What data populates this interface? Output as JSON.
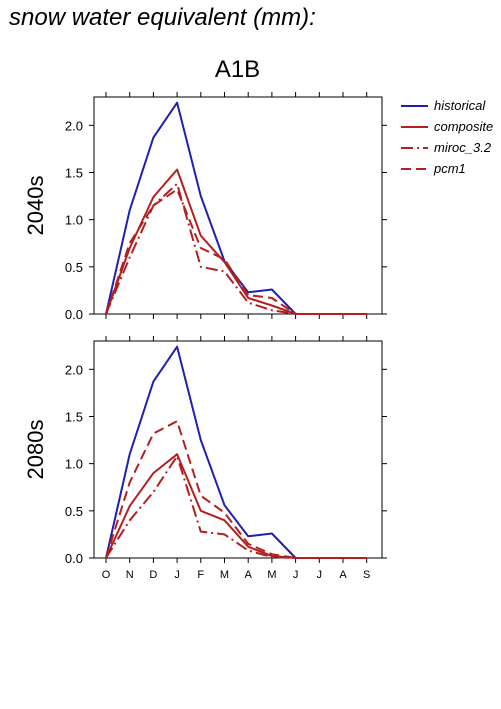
{
  "page": {
    "title": "snow water equivalent (mm):",
    "scenario": "A1B"
  },
  "chart_data": {
    "type": "line",
    "categories": [
      "O",
      "N",
      "D",
      "J",
      "F",
      "M",
      "A",
      "M",
      "J",
      "J",
      "A",
      "S"
    ],
    "ylim": [
      0,
      2.3
    ],
    "yticks": [
      "0.0",
      "0.5",
      "1.0",
      "1.5",
      "2.0"
    ],
    "ytick_values": [
      0,
      0.5,
      1.0,
      1.5,
      2.0
    ],
    "grid": false,
    "legend_position": "right",
    "series_styles": [
      {
        "name": "historical",
        "color": "#1f1fb4",
        "dash": ""
      },
      {
        "name": "composite",
        "color": "#b41f1f",
        "dash": ""
      },
      {
        "name": "miroc_3.2",
        "color": "#b41f1f",
        "dash": "12 4 2 4"
      },
      {
        "name": "pcm1",
        "color": "#b41f1f",
        "dash": "10 5"
      }
    ],
    "panels": [
      {
        "label": "2040s",
        "series": [
          {
            "name": "historical",
            "values": [
              0.0,
              1.1,
              1.87,
              2.24,
              1.25,
              0.56,
              0.23,
              0.26,
              0.0,
              0.0,
              0.0,
              0.0
            ]
          },
          {
            "name": "composite",
            "values": [
              0.0,
              0.7,
              1.24,
              1.53,
              0.83,
              0.55,
              0.17,
              0.09,
              0.0,
              0.0,
              0.0,
              0.0
            ]
          },
          {
            "name": "miroc_3.2",
            "values": [
              0.0,
              0.6,
              1.15,
              1.38,
              0.5,
              0.45,
              0.12,
              0.04,
              0.0,
              0.0,
              0.0,
              0.0
            ]
          },
          {
            "name": "pcm1",
            "values": [
              0.0,
              0.75,
              1.15,
              1.32,
              0.7,
              0.58,
              0.2,
              0.17,
              0.0,
              0.0,
              0.0,
              0.0
            ]
          }
        ]
      },
      {
        "label": "2080s",
        "series": [
          {
            "name": "historical",
            "values": [
              0.0,
              1.1,
              1.87,
              2.24,
              1.25,
              0.56,
              0.23,
              0.26,
              0.0,
              0.0,
              0.0,
              0.0
            ]
          },
          {
            "name": "composite",
            "values": [
              0.0,
              0.55,
              0.9,
              1.1,
              0.5,
              0.4,
              0.12,
              0.02,
              0.0,
              0.0,
              0.0,
              0.0
            ]
          },
          {
            "name": "miroc_3.2",
            "values": [
              0.0,
              0.4,
              0.7,
              1.08,
              0.28,
              0.25,
              0.08,
              0.01,
              0.0,
              0.0,
              0.0,
              0.0
            ]
          },
          {
            "name": "pcm1",
            "values": [
              0.0,
              0.8,
              1.32,
              1.45,
              0.66,
              0.48,
              0.15,
              0.04,
              0.0,
              0.0,
              0.0,
              0.0
            ]
          }
        ]
      }
    ]
  }
}
